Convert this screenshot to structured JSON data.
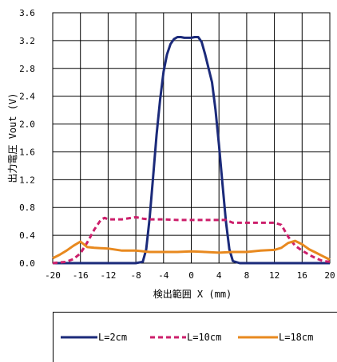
{
  "chart_data": {
    "type": "line",
    "title": "",
    "xlabel": "検出範囲 X (mm)",
    "ylabel": "出力電圧 Vout (V)",
    "xlim": [
      -20,
      20
    ],
    "ylim": [
      0,
      3.6
    ],
    "xticks": [
      -20,
      -16,
      -12,
      -8,
      -4,
      0,
      4,
      8,
      12,
      16,
      20
    ],
    "yticks": [
      0.0,
      0.4,
      0.8,
      1.2,
      1.6,
      2.0,
      2.4,
      2.8,
      3.2,
      3.6
    ],
    "ytick_labels": [
      "0.0",
      "0.4",
      "0.8",
      "1.2",
      "1.6",
      "2.0",
      "2.4",
      "2.8",
      "3.2",
      "3.6"
    ],
    "xtick_labels": [
      "-20",
      "-16",
      "-12",
      "-8",
      "-4",
      "0",
      "4",
      "8",
      "12",
      "16",
      "20"
    ],
    "grid": true,
    "legend_position": "bottom",
    "series": [
      {
        "name": "L=2cm",
        "color": "#1b2a7a",
        "style": "solid",
        "x": [
          -20,
          -10,
          -8,
          -7,
          -6.5,
          -6,
          -5.5,
          -5,
          -4.5,
          -4,
          -3.5,
          -3,
          -2.5,
          -2,
          -1.5,
          -1,
          0,
          0.5,
          1,
          1.5,
          2,
          2.5,
          3,
          3.5,
          4,
          4.5,
          5,
          5.5,
          6,
          7,
          8,
          20
        ],
        "y": [
          0,
          0,
          0,
          0.02,
          0.2,
          0.65,
          1.25,
          1.85,
          2.35,
          2.75,
          3.0,
          3.15,
          3.22,
          3.25,
          3.25,
          3.24,
          3.24,
          3.25,
          3.25,
          3.18,
          3.0,
          2.8,
          2.6,
          2.2,
          1.7,
          1.15,
          0.6,
          0.2,
          0.03,
          0,
          0,
          0
        ]
      },
      {
        "name": "L=10cm",
        "color": "#cc1f6b",
        "style": "dashed",
        "x": [
          -20,
          -18,
          -17,
          -16,
          -15,
          -14,
          -13,
          -12.5,
          -12,
          -10,
          -8,
          -7,
          -6,
          -4,
          -2,
          0,
          2,
          4,
          5,
          6,
          8,
          10,
          12,
          13,
          14,
          15,
          16,
          17,
          18,
          19,
          20
        ],
        "y": [
          0,
          0.02,
          0.06,
          0.14,
          0.3,
          0.48,
          0.63,
          0.65,
          0.63,
          0.63,
          0.66,
          0.64,
          0.63,
          0.63,
          0.62,
          0.62,
          0.62,
          0.62,
          0.62,
          0.58,
          0.58,
          0.58,
          0.58,
          0.55,
          0.38,
          0.25,
          0.18,
          0.12,
          0.07,
          0.03,
          0.02
        ]
      },
      {
        "name": "L=18cm",
        "color": "#e8891f",
        "style": "solid",
        "x": [
          -20,
          -19,
          -18,
          -17,
          -16,
          -15,
          -14,
          -12,
          -10,
          -8,
          -6,
          -4,
          -2,
          0,
          2,
          4,
          6,
          8,
          10,
          12,
          13,
          14,
          15,
          16,
          17,
          18,
          19,
          20
        ],
        "y": [
          0.07,
          0.12,
          0.18,
          0.25,
          0.31,
          0.23,
          0.22,
          0.21,
          0.18,
          0.18,
          0.16,
          0.16,
          0.16,
          0.17,
          0.16,
          0.15,
          0.16,
          0.16,
          0.18,
          0.19,
          0.22,
          0.29,
          0.32,
          0.27,
          0.2,
          0.15,
          0.1,
          0.05
        ]
      }
    ]
  }
}
